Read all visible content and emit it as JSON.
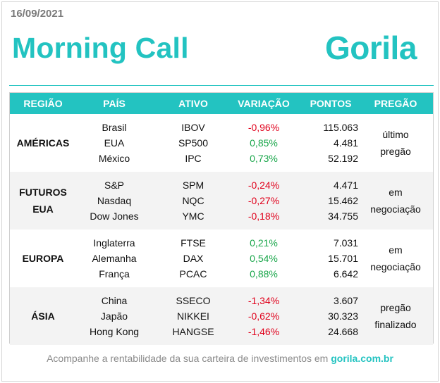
{
  "header": {
    "date": "16/09/2021",
    "title": "Morning Call",
    "logo_text": "Gorila"
  },
  "colors": {
    "accent": "#23c3c1",
    "negative": "#e0001b",
    "positive": "#19a64a"
  },
  "table": {
    "columns": [
      "REGIÃO",
      "PAÍS",
      "ATIVO",
      "VARIAÇÃO",
      "PONTOS",
      "PREGÃO"
    ],
    "groups": [
      {
        "region_lines": [
          "AMÉRICAS"
        ],
        "status_lines": [
          "último",
          "pregão"
        ],
        "rows": [
          {
            "country": "Brasil",
            "asset": "IBOV",
            "variation": "-0,96%",
            "sign": "neg",
            "points": "115.063"
          },
          {
            "country": "EUA",
            "asset": "SP500",
            "variation": "0,85%",
            "sign": "pos",
            "points": "4.481"
          },
          {
            "country": "México",
            "asset": "IPC",
            "variation": "0,73%",
            "sign": "pos",
            "points": "52.192"
          }
        ]
      },
      {
        "region_lines": [
          "FUTUROS",
          "EUA"
        ],
        "status_lines": [
          "em",
          "negociação"
        ],
        "rows": [
          {
            "country": "S&P",
            "asset": "SPM",
            "variation": "-0,24%",
            "sign": "neg",
            "points": "4.471"
          },
          {
            "country": "Nasdaq",
            "asset": "NQC",
            "variation": "-0,27%",
            "sign": "neg",
            "points": "15.462"
          },
          {
            "country": "Dow Jones",
            "asset": "YMC",
            "variation": "-0,18%",
            "sign": "neg",
            "points": "34.755"
          }
        ]
      },
      {
        "region_lines": [
          "EUROPA"
        ],
        "status_lines": [
          "em",
          "negociação"
        ],
        "rows": [
          {
            "country": "Inglaterra",
            "asset": "FTSE",
            "variation": "0,21%",
            "sign": "pos",
            "points": "7.031"
          },
          {
            "country": "Alemanha",
            "asset": "DAX",
            "variation": "0,54%",
            "sign": "pos",
            "points": "15.701"
          },
          {
            "country": "França",
            "asset": "PCAC",
            "variation": "0,88%",
            "sign": "pos",
            "points": "6.642"
          }
        ]
      },
      {
        "region_lines": [
          "ÁSIA"
        ],
        "status_lines": [
          "pregão",
          "finalizado"
        ],
        "rows": [
          {
            "country": "China",
            "asset": "SSECO",
            "variation": "-1,34%",
            "sign": "neg",
            "points": "3.607"
          },
          {
            "country": "Japão",
            "asset": "NIKKEI",
            "variation": "-0,62%",
            "sign": "neg",
            "points": "30.323"
          },
          {
            "country": "Hong Kong",
            "asset": "HANGSE",
            "variation": "-1,46%",
            "sign": "neg",
            "points": "24.668"
          }
        ]
      }
    ]
  },
  "footer": {
    "text": "Acompanhe a rentabilidade da sua carteira de investimentos em",
    "link": "gorila.com.br"
  }
}
